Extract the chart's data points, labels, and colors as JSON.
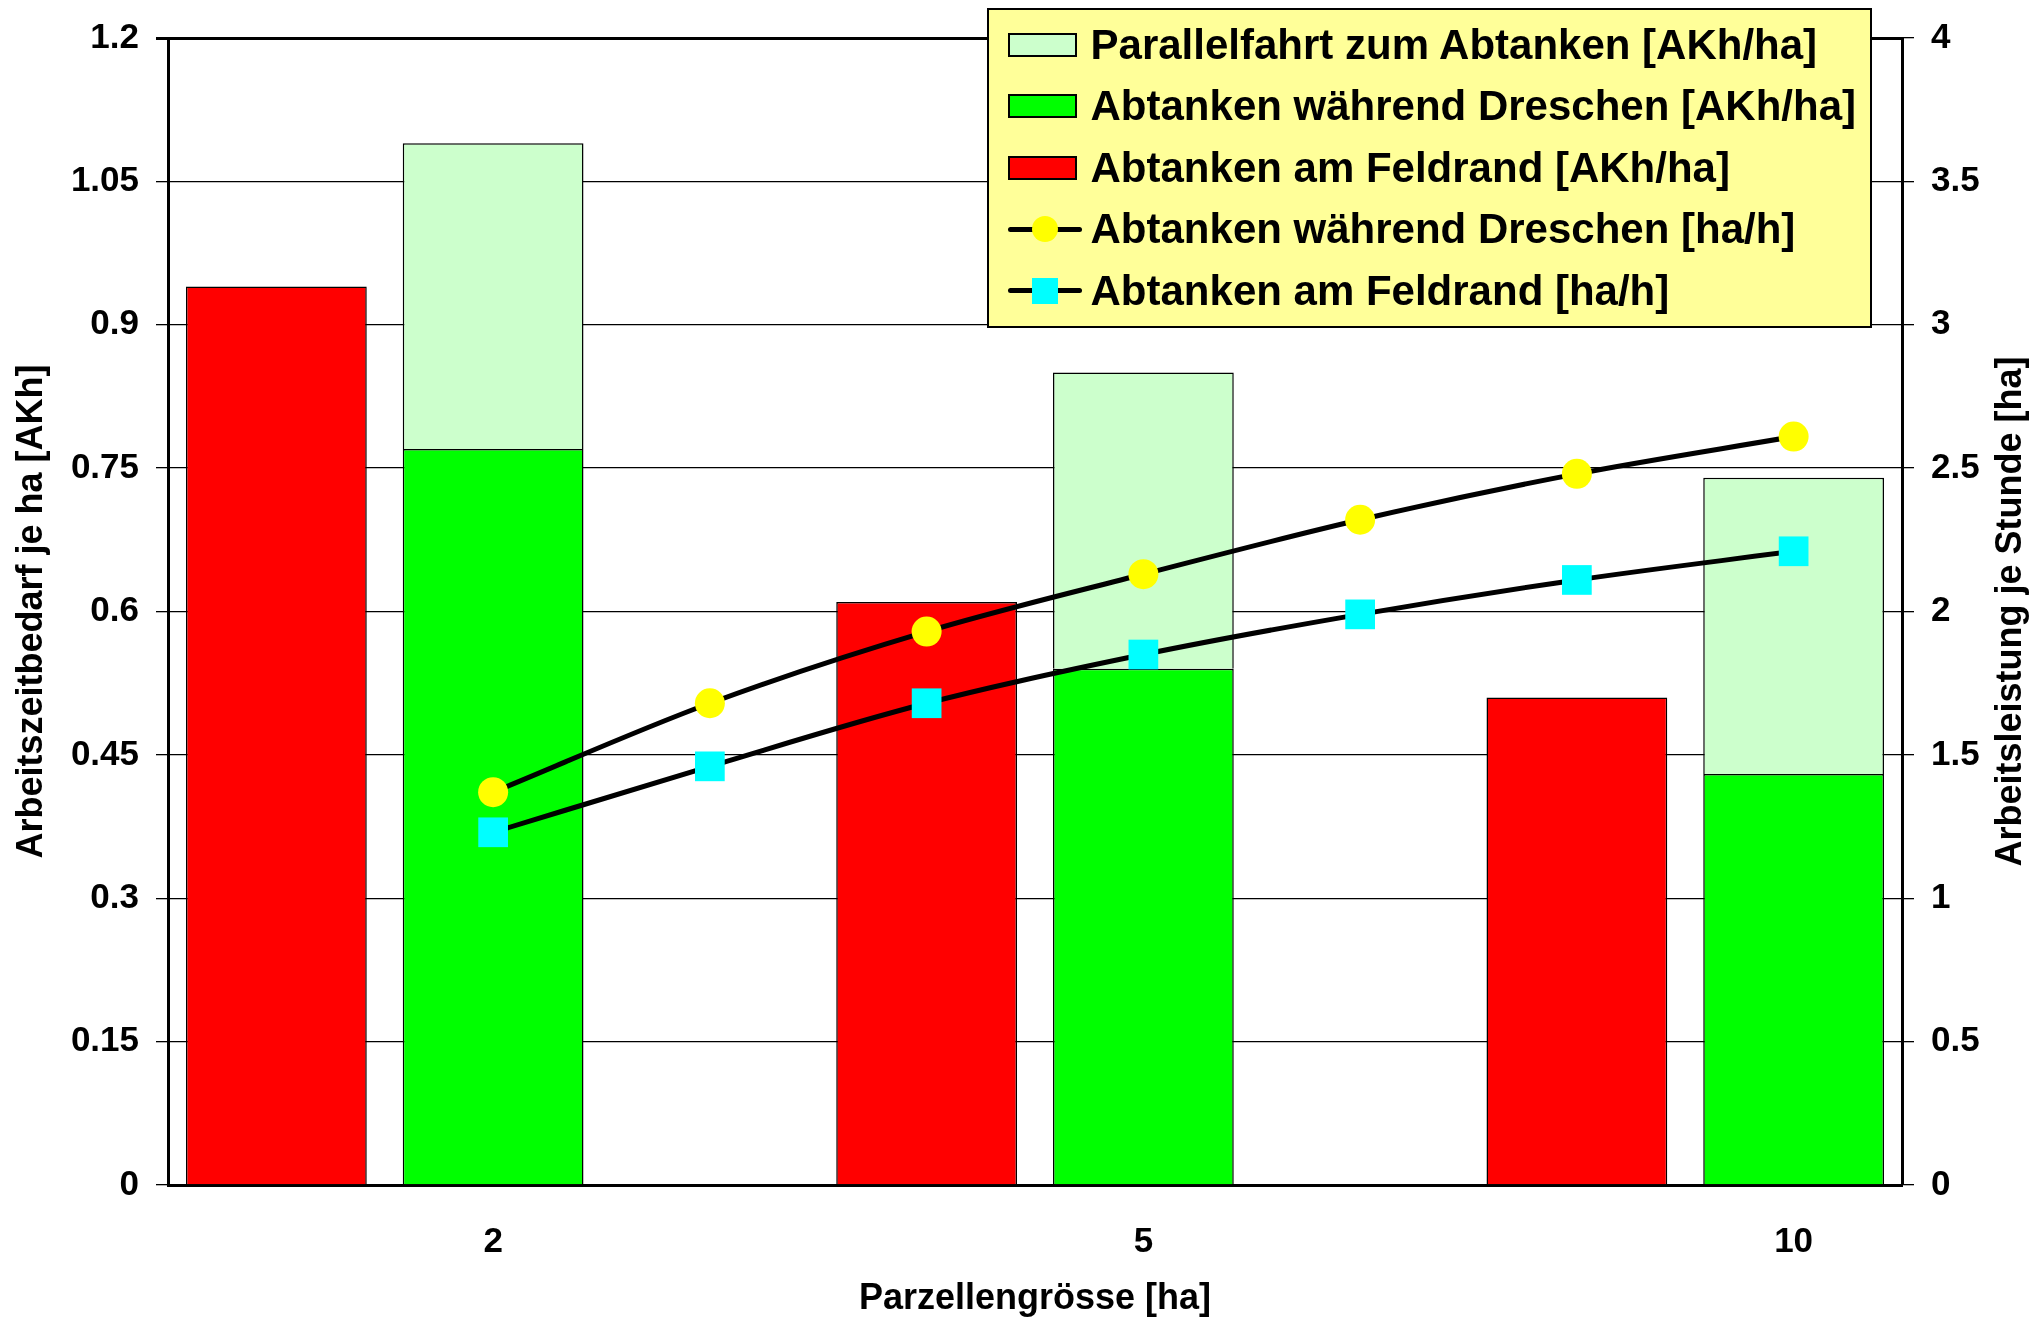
{
  "chart_data": {
    "type": "bar",
    "xlabel": "Parzellengrösse [ha]",
    "ylabel": "Arbeitszeitbedarf je ha [AKh]",
    "y2label": "Arbeitsleistung je Stunde [ha]",
    "categories": [
      null,
      "2",
      null,
      null,
      "5",
      null,
      null,
      "10"
    ],
    "stacked": true,
    "series": [
      {
        "name": "Abtanken am Feldrand [AKh/ha]",
        "color": "#ff0000",
        "values": [
          0.94,
          null,
          null,
          0.61,
          null,
          null,
          0.51,
          null
        ]
      },
      {
        "name": "Abtanken während Dreschen [AKh/ha]",
        "color": "#00ff00",
        "values": [
          null,
          0.77,
          null,
          null,
          0.54,
          null,
          null,
          0.43
        ]
      },
      {
        "name": "Parallelfahrt zum Abtanken [AKh/ha]",
        "color": "#ccffcc",
        "values": [
          null,
          0.32,
          null,
          null,
          0.31,
          null,
          null,
          0.31
        ]
      },
      {
        "name": "Abtanken während Dreschen [ha/h]",
        "type": "line",
        "axis": "y2",
        "color": "#ffff00",
        "marker": "circle",
        "values": [
          null,
          1.37,
          1.68,
          1.93,
          2.13,
          2.32,
          2.48,
          2.61
        ]
      },
      {
        "name": "Abtanken am Feldrand [ha/h]",
        "type": "line",
        "axis": "y2",
        "color": "#00ffff",
        "marker": "square",
        "values": [
          null,
          1.23,
          1.46,
          1.68,
          1.85,
          1.99,
          2.11,
          2.21
        ]
      }
    ],
    "ylim": [
      0,
      1.2
    ],
    "yticks": [
      0,
      0.15,
      0.3,
      0.45,
      0.6,
      0.75,
      0.9,
      1.05,
      1.2
    ],
    "y2lim": [
      0,
      4
    ],
    "y2ticks": [
      0,
      0.5,
      1,
      1.5,
      2,
      2.5,
      3,
      3.5,
      4
    ],
    "grid": "y",
    "legend": "top right"
  }
}
